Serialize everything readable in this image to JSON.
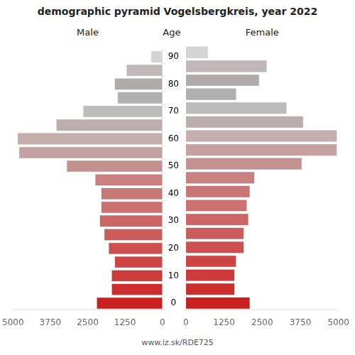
{
  "chart_data": {
    "type": "bar",
    "orientation": "horizontal",
    "title": "demographic pyramid Vogelsbergkreis, year 2022",
    "subtitle": "www.iz.sk/RDE725",
    "ylabel": "Age",
    "categories": [
      "0",
      null,
      "10",
      null,
      "20",
      null,
      "30",
      null,
      "40",
      null,
      "50",
      null,
      "60",
      null,
      "70",
      null,
      "80",
      null,
      "90"
    ],
    "series": [
      {
        "name": "Male",
        "values": [
          2200,
          1700,
          1700,
          1600,
          1800,
          1950,
          2100,
          2050,
          2050,
          2250,
          3200,
          4800,
          4850,
          3550,
          2650,
          1500,
          1600,
          1200,
          380
        ],
        "colors": [
          "#cc2020",
          "#cc2e2e",
          "#cc3a3a",
          "#cc4444",
          "#cc5050",
          "#cc5c5c",
          "#cc6666",
          "#cc7070",
          "#c87676",
          "#c88080",
          "#c49090",
          "#c4a0a0",
          "#c4aeae",
          "#bcaeae",
          "#bcbcbc",
          "#b0b0b0",
          "#b0aaaa",
          "#c0b8b8",
          "#d4d4d4"
        ]
      },
      {
        "name": "Female",
        "values": [
          2100,
          1600,
          1600,
          1650,
          1900,
          1900,
          2050,
          2000,
          2100,
          2250,
          3800,
          4950,
          4950,
          3850,
          3300,
          1650,
          2400,
          2650,
          720
        ],
        "colors": [
          "#cc2020",
          "#cc2e2e",
          "#cc3a3a",
          "#cc4444",
          "#cc5050",
          "#cc5c5c",
          "#cc6666",
          "#cc7070",
          "#c87676",
          "#c88080",
          "#c49090",
          "#c4a0a0",
          "#c4aeae",
          "#bcaeae",
          "#bcbcbc",
          "#b0b0b0",
          "#b0aaaa",
          "#c0b8b8",
          "#d4d4d4"
        ]
      }
    ],
    "xlim": [
      0,
      5000
    ],
    "xticks": [
      0,
      1250,
      2500,
      3750,
      5000
    ],
    "grid": false
  }
}
